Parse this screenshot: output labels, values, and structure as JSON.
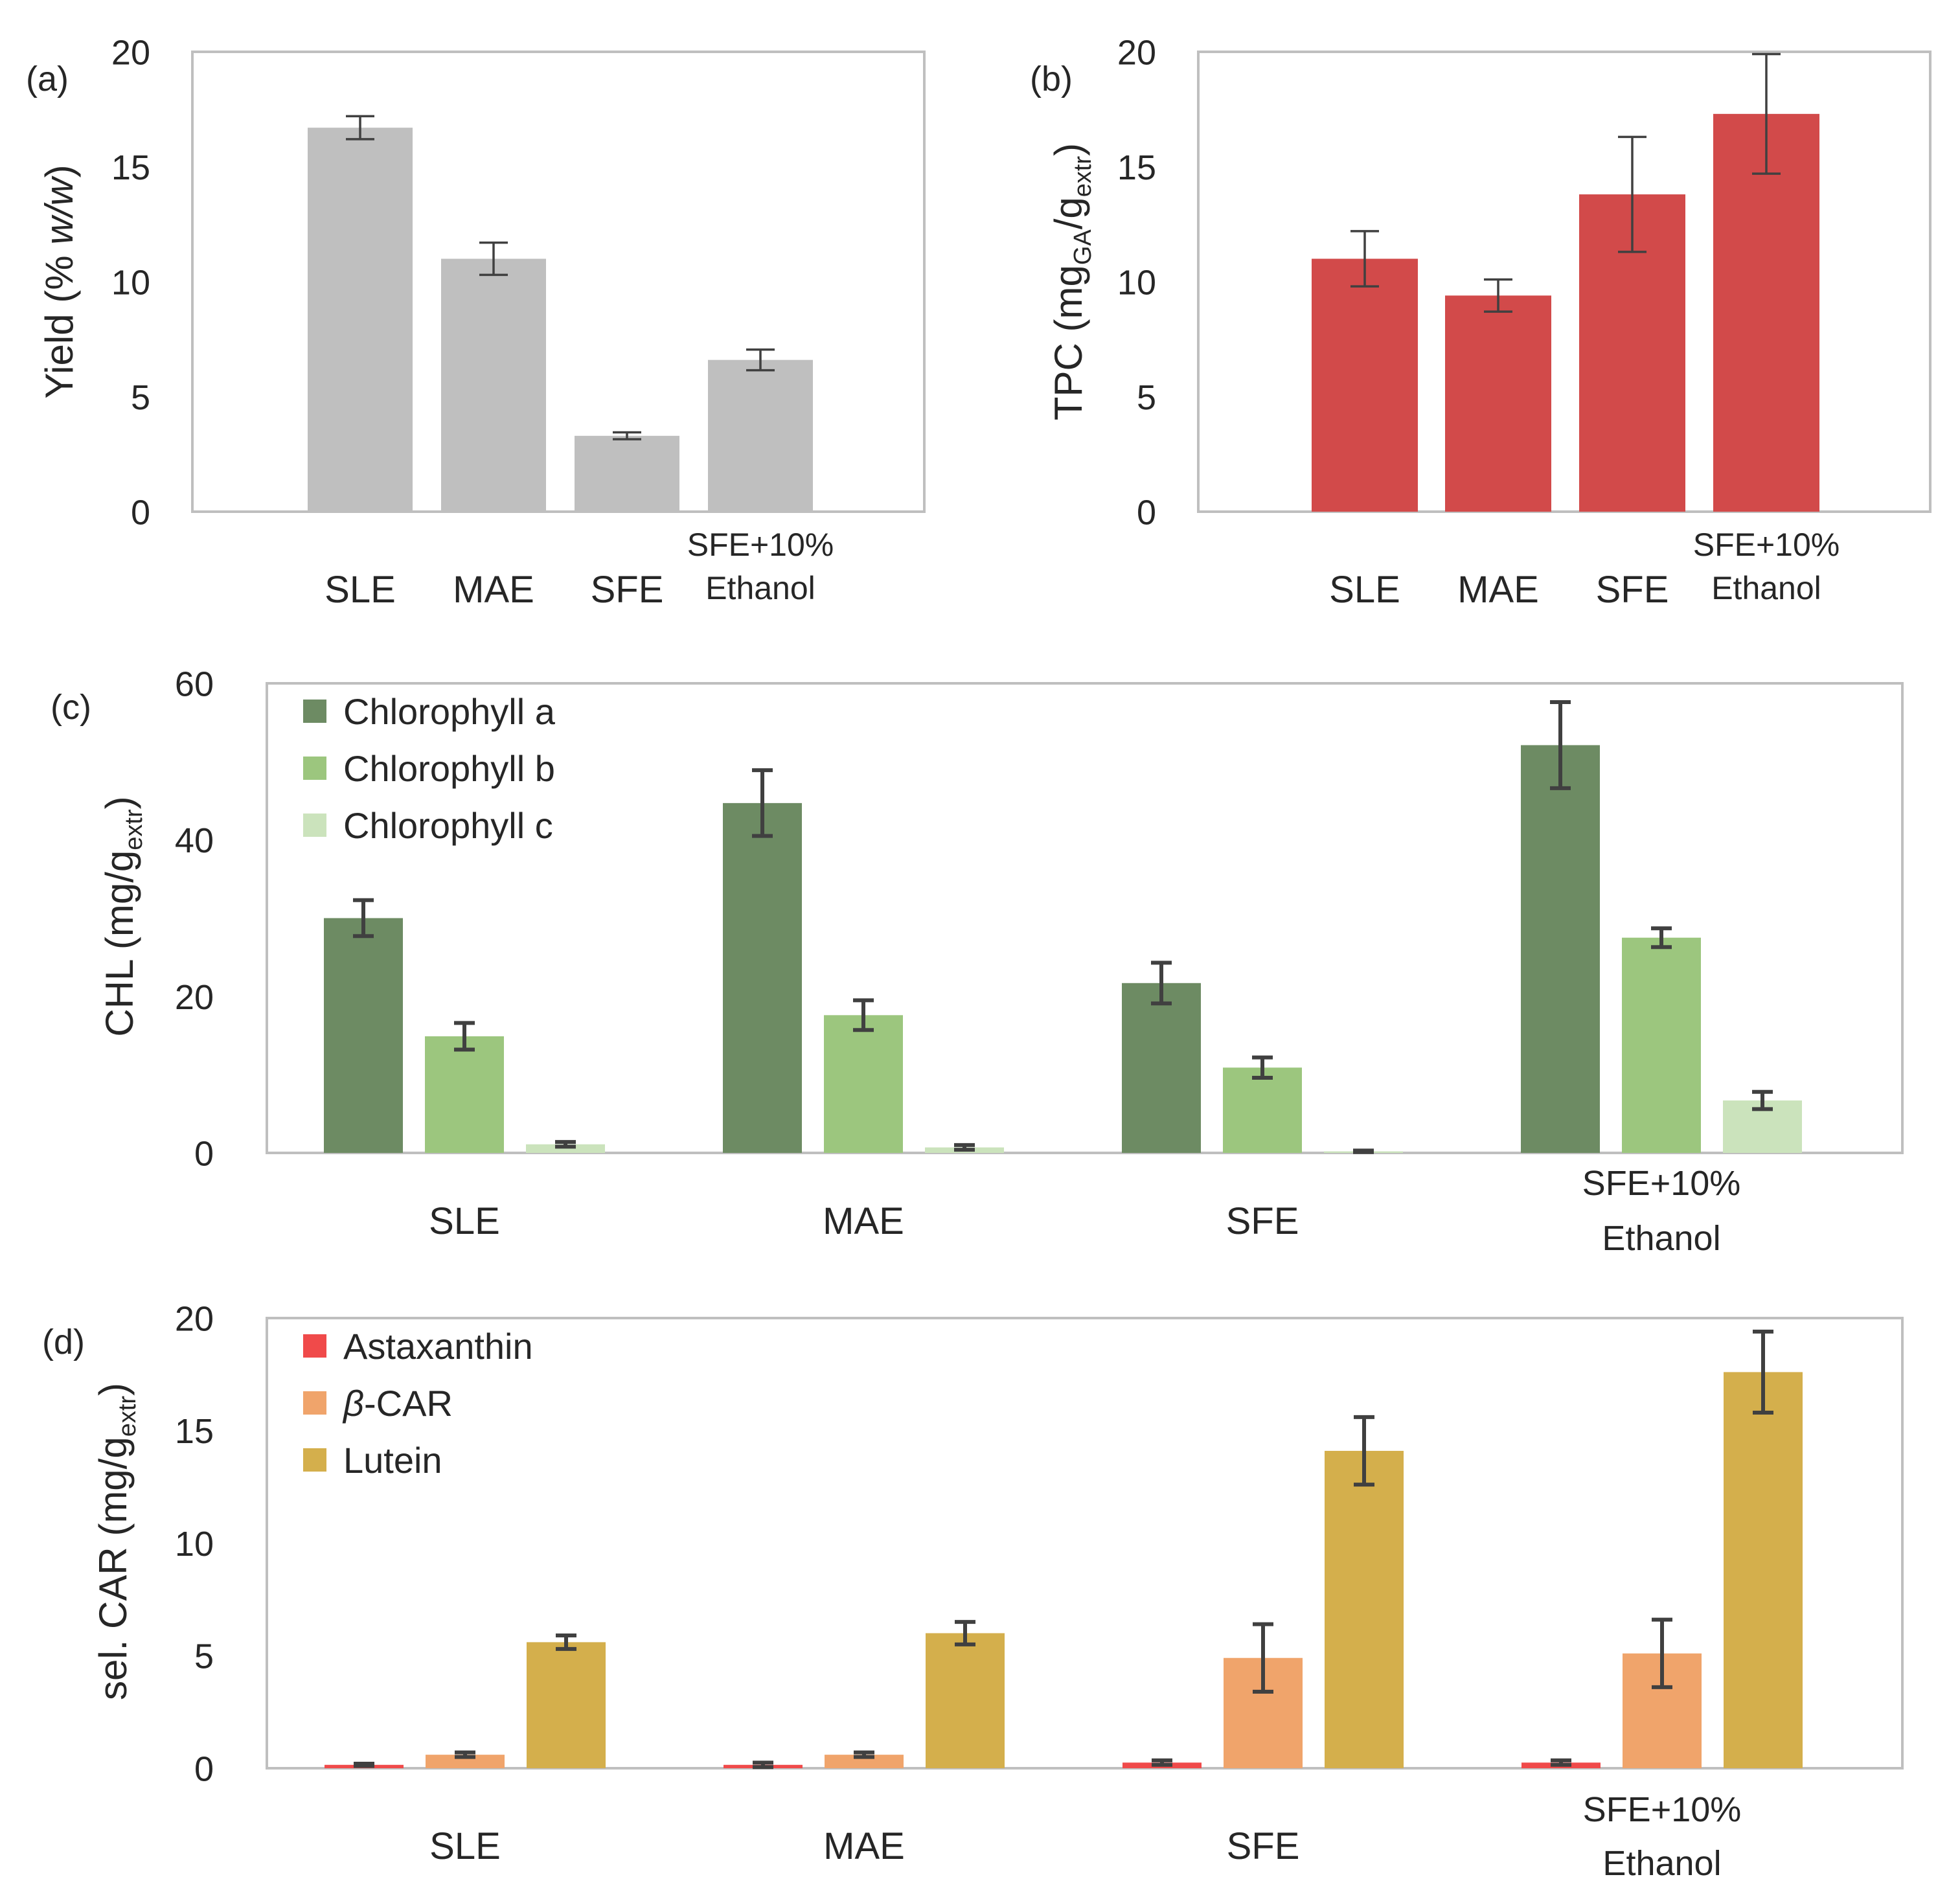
{
  "colors": {
    "yield": "#bfbfbf",
    "tpc": "#d24a4a",
    "chl_a": "#6d8b63",
    "chl_b": "#9cc67e",
    "chl_c": "#cbe3bc",
    "astaxanthin": "#f04a4a",
    "b_car": "#f0a46b",
    "lutein": "#d4af4c",
    "errorbar": "#404040"
  },
  "chart_data": [
    {
      "id": "a",
      "panel_label": "(a)",
      "type": "bar",
      "ylabel_main": "Yield (% ",
      "ylabel_italic": "w/w",
      "ylabel_close": ")",
      "ylim": [
        0,
        20
      ],
      "yticks": [
        "0",
        "5",
        "10",
        "15",
        "20"
      ],
      "categories": [
        [
          "SLE"
        ],
        [
          "MAE"
        ],
        [
          "SFE"
        ],
        [
          "SFE+10%",
          "Ethanol"
        ]
      ],
      "series": [
        {
          "name": "Yield",
          "color_key": "yield",
          "values": [
            16.7,
            11.0,
            3.3,
            6.6
          ],
          "errors": [
            0.5,
            0.7,
            0.15,
            0.45
          ]
        }
      ]
    },
    {
      "id": "b",
      "panel_label": "(b)",
      "type": "bar",
      "ylabel_main": "TPC (mg",
      "ylabel_sub": "GA",
      "ylabel_mid": "/g",
      "ylabel_sub2": "extr",
      "ylabel_close": ")",
      "ylim": [
        0,
        20
      ],
      "yticks": [
        "0",
        "5",
        "10",
        "15",
        "20"
      ],
      "categories": [
        [
          "SLE"
        ],
        [
          "MAE"
        ],
        [
          "SFE"
        ],
        [
          "SFE+10%",
          "Ethanol"
        ]
      ],
      "series": [
        {
          "name": "TPC",
          "color_key": "tpc",
          "values": [
            11.0,
            9.4,
            13.8,
            17.3
          ],
          "errors": [
            1.2,
            0.7,
            2.5,
            2.6
          ]
        }
      ]
    },
    {
      "id": "c",
      "panel_label": "(c)",
      "type": "bar",
      "ylabel_main": "CHL (mg/g",
      "ylabel_sub": "extr",
      "ylabel_close": ")",
      "ylim": [
        0,
        60
      ],
      "yticks": [
        "0",
        "20",
        "40",
        "60"
      ],
      "categories": [
        [
          "SLE"
        ],
        [
          "MAE"
        ],
        [
          "SFE"
        ],
        [
          "SFE+10%",
          "Ethanol"
        ]
      ],
      "legend": "top-left",
      "series": [
        {
          "name": "Chlorophyll a",
          "color_key": "chl_a",
          "values": [
            30.0,
            44.7,
            21.7,
            52.1
          ],
          "errors": [
            2.3,
            4.2,
            2.6,
            5.5
          ]
        },
        {
          "name": "Chlorophyll b",
          "color_key": "chl_b",
          "values": [
            14.9,
            17.6,
            10.9,
            27.5
          ],
          "errors": [
            1.7,
            1.9,
            1.3,
            1.2
          ]
        },
        {
          "name": "Chlorophyll c",
          "color_key": "chl_c",
          "values": [
            1.1,
            0.7,
            0.2,
            6.7
          ],
          "errors": [
            0.3,
            0.3,
            0.1,
            1.1
          ]
        }
      ]
    },
    {
      "id": "d",
      "panel_label": "(d)",
      "type": "bar",
      "ylabel_main": "sel. CAR (mg/g",
      "ylabel_sub": "extr",
      "ylabel_close": ")",
      "ylim": [
        0,
        20
      ],
      "yticks": [
        "0",
        "5",
        "10",
        "15",
        "20"
      ],
      "categories": [
        [
          "SLE"
        ],
        [
          "MAE"
        ],
        [
          "SFE"
        ],
        [
          "SFE+10%",
          "Ethanol"
        ]
      ],
      "legend": "top-left",
      "series": [
        {
          "name": "Astaxanthin",
          "color_key": "astaxanthin",
          "values": [
            0.15,
            0.15,
            0.25,
            0.25
          ],
          "errors": [
            0.05,
            0.1,
            0.1,
            0.1
          ]
        },
        {
          "name": "β-CAR",
          "name_prefix": "β",
          "name_suffix": "-CAR",
          "color_key": "b_car",
          "values": [
            0.6,
            0.6,
            4.9,
            5.1
          ],
          "errors": [
            0.1,
            0.1,
            1.5,
            1.5
          ]
        },
        {
          "name": "Lutein",
          "color_key": "lutein",
          "values": [
            5.6,
            6.0,
            14.1,
            17.6
          ],
          "errors": [
            0.3,
            0.5,
            1.5,
            1.8
          ]
        }
      ]
    }
  ]
}
